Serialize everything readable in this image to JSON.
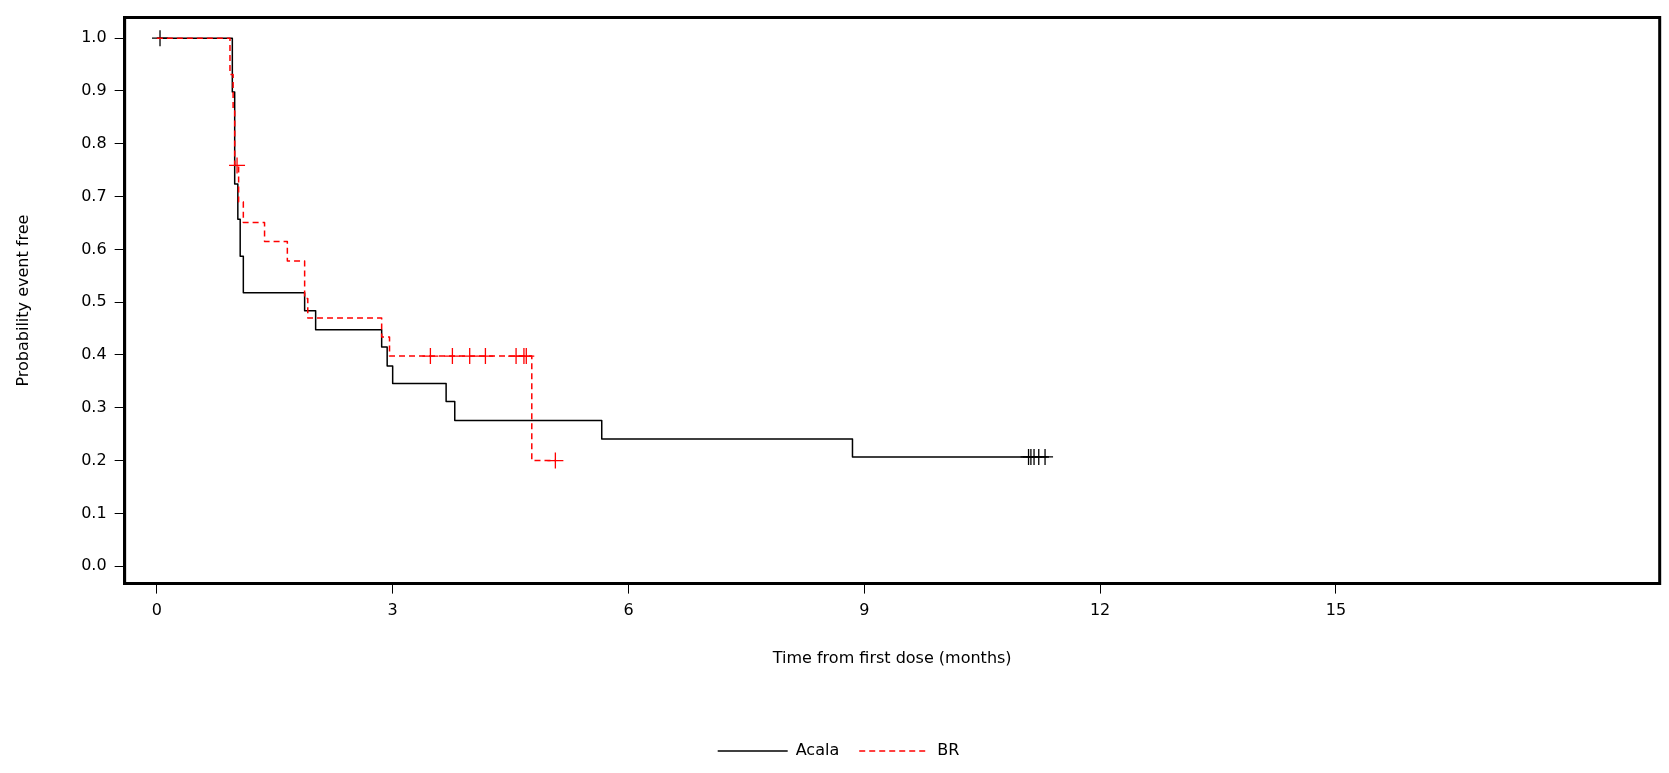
{
  "chart_data": {
    "type": "step",
    "xlabel": "Time from first dose (months)",
    "ylabel": "Probability event free",
    "xlim": [
      -0.41,
      19.12
    ],
    "ylim": [
      -0.033,
      1.039
    ],
    "xticks": [
      0,
      3,
      6,
      9,
      12,
      15
    ],
    "yticks": [
      {
        "value": 0,
        "label": "0.0"
      },
      {
        "value": 0.1,
        "label": "0.1"
      },
      {
        "value": 0.2,
        "label": "0.2"
      },
      {
        "value": 0.3,
        "label": "0.3"
      },
      {
        "value": 0.4,
        "label": "0.4"
      },
      {
        "value": 0.5,
        "label": "0.5"
      },
      {
        "value": 0.6,
        "label": "0.6"
      },
      {
        "value": 0.7,
        "label": "0.7"
      },
      {
        "value": 0.8,
        "label": "0.8"
      },
      {
        "value": 0.9,
        "label": "0.9"
      },
      {
        "value": 1,
        "label": "1.0"
      }
    ],
    "legend": "bottom",
    "series": [
      {
        "name": "Acala",
        "color": "#000000",
        "line_style": "solid",
        "marker": "none",
        "x": [
          0,
          0.96,
          0.99,
          1.03,
          1.06,
          1.1,
          1.88,
          2.02,
          2.86,
          2.93,
          3.0,
          3.68,
          3.79,
          5.66,
          8.85,
          11.35
        ],
        "values": [
          1,
          0.898,
          0.724,
          0.657,
          0.587,
          0.518,
          0.484,
          0.448,
          0.415,
          0.379,
          0.346,
          0.312,
          0.276,
          0.241,
          0.207,
          0.207
        ]
      },
      {
        "name": "BR",
        "color": "#ff0000",
        "line_style": "dashed",
        "marker": "none",
        "x": [
          0,
          0.93,
          0.97,
          0.99,
          1.04,
          1.1,
          1.37,
          1.66,
          1.88,
          1.92,
          2.86,
          2.96,
          4.77,
          5.07
        ],
        "values": [
          1,
          0.931,
          0.862,
          0.759,
          0.69,
          0.651,
          0.615,
          0.578,
          0.507,
          0.47,
          0.434,
          0.398,
          0.2,
          0.2
        ]
      },
      {
        "type": "scatter",
        "color": "#000000",
        "marker": "cross",
        "x": [
          0.04,
          11.09,
          11.12,
          11.16,
          11.22,
          11.3
        ],
        "values": [
          1,
          0.207,
          0.207,
          0.207,
          0.207,
          0.207
        ]
      },
      {
        "type": "scatter",
        "color": "#ff0000",
        "marker": "cross",
        "x": [
          1.02,
          3.48,
          3.76,
          3.98,
          4.18,
          4.57,
          4.67,
          4.7,
          5.07
        ],
        "values": [
          0.759,
          0.398,
          0.398,
          0.398,
          0.398,
          0.398,
          0.398,
          0.398,
          0.2
        ]
      }
    ]
  }
}
